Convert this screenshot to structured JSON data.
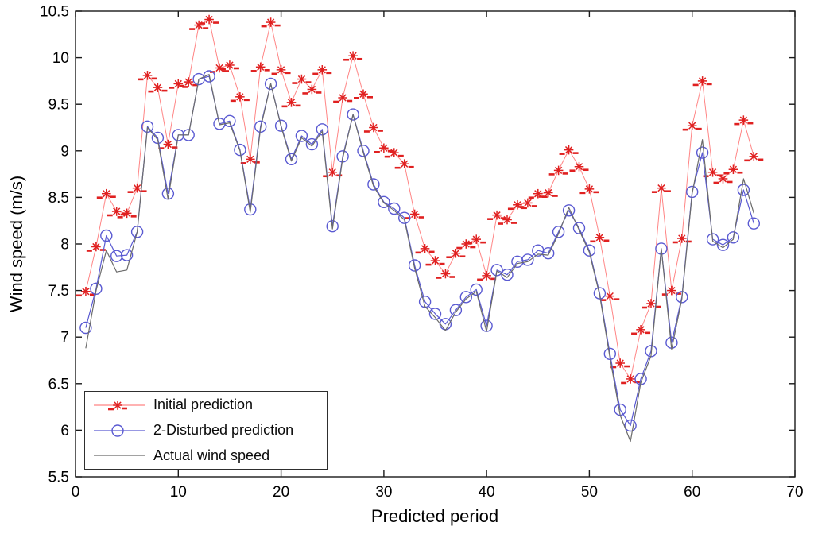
{
  "figure": {
    "background_color": "#ffffff",
    "frame_color": "#1a1a1a"
  },
  "chart_data": {
    "type": "line",
    "title": "",
    "xlabel": "Predicted period",
    "ylabel": "Wind speed (m/s)",
    "xlim": [
      0,
      70
    ],
    "ylim": [
      5.5,
      10.5
    ],
    "x_tick_labels": [
      "0",
      "10",
      "20",
      "30",
      "40",
      "50",
      "60",
      "70"
    ],
    "x_ticks": [
      0,
      10,
      20,
      30,
      40,
      50,
      60,
      70
    ],
    "y_tick_labels": [
      "5.5",
      "6",
      "6.5",
      "7",
      "7.5",
      "8",
      "8.5",
      "9",
      "9.5",
      "10",
      "10.5"
    ],
    "y_ticks": [
      5.5,
      6,
      6.5,
      7,
      7.5,
      8,
      8.5,
      9,
      9.5,
      10,
      10.5
    ],
    "grid": false,
    "legend_position": "bottom-left",
    "x": [
      1,
      2,
      3,
      4,
      5,
      6,
      7,
      8,
      9,
      10,
      11,
      12,
      13,
      14,
      15,
      16,
      17,
      18,
      19,
      20,
      21,
      22,
      23,
      24,
      25,
      26,
      27,
      28,
      29,
      30,
      31,
      32,
      33,
      34,
      35,
      36,
      37,
      38,
      39,
      40,
      41,
      42,
      43,
      44,
      45,
      46,
      47,
      48,
      49,
      50,
      51,
      52,
      53,
      54,
      55,
      56,
      57,
      58,
      59,
      60,
      61,
      62,
      63,
      64,
      65,
      66
    ],
    "series": [
      {
        "name": "Initial prediction",
        "marker": "star",
        "marker_color": "#e02020",
        "line_color": "#ff8585",
        "values": [
          7.49,
          7.97,
          8.54,
          8.35,
          8.33,
          8.6,
          9.81,
          9.68,
          9.07,
          9.72,
          9.74,
          10.35,
          10.41,
          9.89,
          9.92,
          9.58,
          8.91,
          9.9,
          10.38,
          9.87,
          9.52,
          9.77,
          9.66,
          9.87,
          8.77,
          9.57,
          10.02,
          9.61,
          9.25,
          9.03,
          8.98,
          8.86,
          8.32,
          7.95,
          7.82,
          7.68,
          7.9,
          8.0,
          8.05,
          7.66,
          8.31,
          8.26,
          8.42,
          8.44,
          8.54,
          8.55,
          8.79,
          9.01,
          8.83,
          8.59,
          8.07,
          7.44,
          6.72,
          6.55,
          7.08,
          7.36,
          8.6,
          7.5,
          8.06,
          9.27,
          9.75,
          8.77,
          8.7,
          8.8,
          9.33,
          8.94
        ]
      },
      {
        "name": "2-Disturbed prediction",
        "marker": "circle",
        "marker_color": "#5a5ad2",
        "line_color": "#5a5ad2",
        "values": [
          7.1,
          7.52,
          8.09,
          7.87,
          7.88,
          8.13,
          9.26,
          9.14,
          8.54,
          9.17,
          9.17,
          9.77,
          9.8,
          9.29,
          9.32,
          9.01,
          8.37,
          9.26,
          9.72,
          9.27,
          8.91,
          9.16,
          9.07,
          9.23,
          8.19,
          8.94,
          9.39,
          9.0,
          8.64,
          8.45,
          8.38,
          8.28,
          7.77,
          7.38,
          7.25,
          7.14,
          7.29,
          7.43,
          7.51,
          7.12,
          7.72,
          7.67,
          7.81,
          7.83,
          7.93,
          7.9,
          8.13,
          8.36,
          8.17,
          7.93,
          7.47,
          6.82,
          6.22,
          6.05,
          6.55,
          6.85,
          7.95,
          6.94,
          7.43,
          8.56,
          8.98,
          8.05,
          7.99,
          8.07,
          8.58,
          8.22
        ]
      },
      {
        "name": "Actual wind speed",
        "marker": "none",
        "marker_color": "#6b6b6b",
        "line_color": "#6b6b6b",
        "values": [
          6.88,
          7.5,
          7.93,
          7.7,
          7.72,
          8.13,
          9.25,
          9.12,
          8.48,
          9.17,
          9.17,
          9.77,
          9.82,
          9.28,
          9.3,
          9.0,
          8.34,
          9.24,
          9.72,
          9.26,
          8.89,
          9.14,
          9.05,
          9.21,
          8.16,
          8.92,
          9.39,
          8.98,
          8.62,
          8.44,
          8.36,
          8.26,
          7.74,
          7.33,
          7.21,
          7.07,
          7.27,
          7.41,
          7.49,
          7.06,
          7.71,
          7.64,
          7.79,
          7.81,
          7.89,
          7.88,
          8.11,
          8.39,
          8.15,
          7.91,
          7.45,
          6.78,
          6.16,
          5.88,
          6.51,
          6.8,
          7.95,
          6.87,
          7.41,
          8.54,
          9.12,
          8.03,
          7.96,
          8.05,
          8.7,
          8.33
        ]
      }
    ]
  },
  "legend": {
    "items": [
      "Initial prediction",
      "2-Disturbed prediction",
      "Actual wind speed"
    ]
  }
}
